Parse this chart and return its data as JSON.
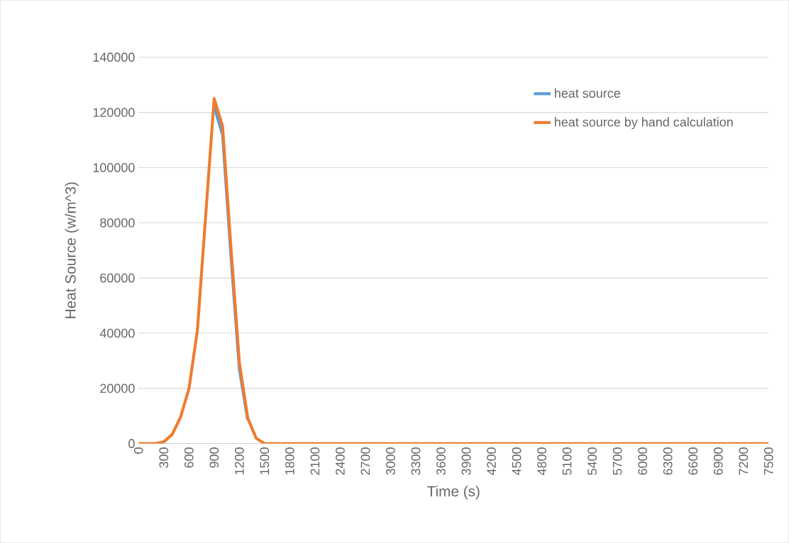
{
  "chart_data": {
    "type": "line",
    "xlabel": "Time (s)",
    "ylabel": "Heat Source (w/m^3)",
    "x": [
      0,
      100,
      200,
      300,
      400,
      500,
      600,
      700,
      800,
      900,
      1000,
      1100,
      1200,
      1300,
      1400,
      1500,
      1600,
      1700,
      1800,
      1900,
      2000,
      2100,
      2200,
      2300,
      2400,
      2500,
      2600,
      2700,
      2800,
      2900,
      3000,
      3100,
      3200,
      3300,
      3400,
      3500,
      3600,
      3700,
      3800,
      3900,
      4000,
      4100,
      4200,
      4300,
      4400,
      4500,
      4600,
      4700,
      4800,
      4900,
      5000,
      5100,
      5200,
      5300,
      5400,
      5500,
      5600,
      5700,
      5800,
      5900,
      6000,
      6100,
      6200,
      6300,
      6400,
      6500,
      6600,
      6700,
      6800,
      6900,
      7000,
      7100,
      7200,
      7300,
      7400,
      7500
    ],
    "series": [
      {
        "name": "heat source",
        "color": "#5b9bd5",
        "values": [
          null,
          null,
          null,
          null,
          null,
          null,
          null,
          null,
          null,
          122000,
          112000,
          68000,
          27000,
          8500,
          null,
          null,
          null,
          null,
          null,
          null,
          null,
          null,
          null,
          null,
          null,
          null,
          null,
          null,
          null,
          null,
          null,
          null,
          null,
          null,
          null,
          null,
          null,
          null,
          null,
          null,
          null,
          null,
          null,
          null,
          null,
          null,
          null,
          null,
          null,
          null,
          null,
          null,
          null,
          null,
          null,
          null,
          null,
          null,
          null,
          null,
          null,
          null,
          null,
          null,
          null,
          null,
          null,
          null,
          null,
          null,
          null,
          null,
          null,
          null,
          null,
          null
        ]
      },
      {
        "name": "heat source by hand calculation",
        "color": "#ed7d31",
        "values": [
          0,
          0,
          0,
          600,
          3300,
          9600,
          19900,
          40900,
          83000,
          125000,
          115000,
          71000,
          29300,
          9200,
          1900,
          0,
          0,
          0,
          0,
          0,
          0,
          0,
          0,
          0,
          0,
          0,
          0,
          0,
          0,
          0,
          0,
          0,
          0,
          0,
          0,
          0,
          0,
          0,
          0,
          0,
          0,
          0,
          0,
          0,
          0,
          0,
          0,
          0,
          0,
          0,
          0,
          0,
          0,
          0,
          0,
          0,
          0,
          0,
          0,
          0,
          0,
          0,
          0,
          0,
          0,
          0,
          0,
          0,
          0,
          0,
          0,
          0,
          0,
          0,
          0,
          0
        ]
      }
    ],
    "xlim": [
      0,
      7500
    ],
    "xticks": [
      0,
      300,
      600,
      900,
      1200,
      1500,
      1800,
      2100,
      2400,
      2700,
      3000,
      3300,
      3600,
      3900,
      4200,
      4500,
      4800,
      5100,
      5400,
      5700,
      6000,
      6300,
      6600,
      6900,
      7200,
      7500
    ],
    "ylim": [
      0,
      140000
    ],
    "yticks": [
      0,
      20000,
      40000,
      60000,
      80000,
      100000,
      120000,
      140000
    ],
    "grid": "y",
    "legend": "top right",
    "marker": "none",
    "line_style": "solid"
  }
}
